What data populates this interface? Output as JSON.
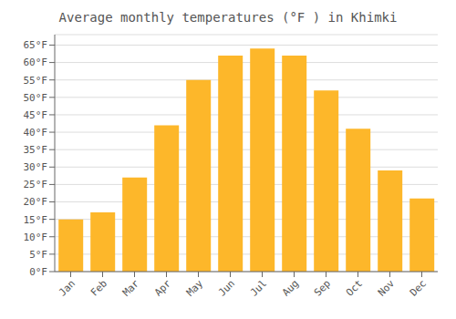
{
  "chart_data": {
    "type": "bar",
    "title": "Average monthly temperatures (°F ) in Khimki",
    "categories": [
      "Jan",
      "Feb",
      "Mar",
      "Apr",
      "May",
      "Jun",
      "Jul",
      "Aug",
      "Sep",
      "Oct",
      "Nov",
      "Dec"
    ],
    "values": [
      15,
      17,
      27,
      42,
      55,
      62,
      64,
      62,
      52,
      41,
      29,
      21
    ],
    "color": "#FDB72A",
    "ylim": [
      0,
      68
    ],
    "yticks": [
      {
        "value": 0,
        "label": "0°F"
      },
      {
        "value": 5,
        "label": "5°F"
      },
      {
        "value": 10,
        "label": "10°F"
      },
      {
        "value": 15,
        "label": "15°F"
      },
      {
        "value": 20,
        "label": "20°F"
      },
      {
        "value": 25,
        "label": "25°F"
      },
      {
        "value": 30,
        "label": "30°F"
      },
      {
        "value": 35,
        "label": "35°F"
      },
      {
        "value": 40,
        "label": "40°F"
      },
      {
        "value": 45,
        "label": "45°F"
      },
      {
        "value": 50,
        "label": "50°F"
      },
      {
        "value": 55,
        "label": "55°F"
      },
      {
        "value": 60,
        "label": "60°F"
      },
      {
        "value": 65,
        "label": "65°F"
      }
    ],
    "grid": true
  }
}
